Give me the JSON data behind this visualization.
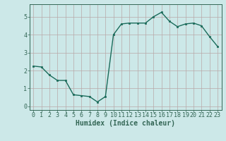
{
  "x": [
    0,
    1,
    2,
    3,
    4,
    5,
    6,
    7,
    8,
    9,
    10,
    11,
    12,
    13,
    14,
    15,
    16,
    17,
    18,
    19,
    20,
    21,
    22,
    23
  ],
  "y": [
    2.25,
    2.2,
    1.75,
    1.45,
    1.45,
    0.65,
    0.6,
    0.55,
    0.25,
    0.55,
    4.0,
    4.6,
    4.65,
    4.65,
    4.65,
    5.0,
    5.25,
    4.75,
    4.45,
    4.6,
    4.65,
    4.5,
    3.9,
    3.35
  ],
  "line_color": "#1a6b5a",
  "marker": "s",
  "marker_size": 2.0,
  "bg_color": "#cce8e8",
  "grid_color": "#b8a8a8",
  "axis_color": "#336655",
  "xlabel": "Humidex (Indice chaleur)",
  "xlabel_fontsize": 7,
  "ylabel_ticks": [
    0,
    1,
    2,
    3,
    4,
    5
  ],
  "xlim": [
    -0.5,
    23.5
  ],
  "ylim": [
    -0.2,
    5.7
  ],
  "xtick_labels": [
    "0",
    "1",
    "2",
    "3",
    "4",
    "5",
    "6",
    "7",
    "8",
    "9",
    "10",
    "11",
    "12",
    "13",
    "14",
    "15",
    "16",
    "17",
    "18",
    "19",
    "20",
    "21",
    "22",
    "23"
  ],
  "tick_fontsize": 6.0,
  "linewidth": 1.0
}
